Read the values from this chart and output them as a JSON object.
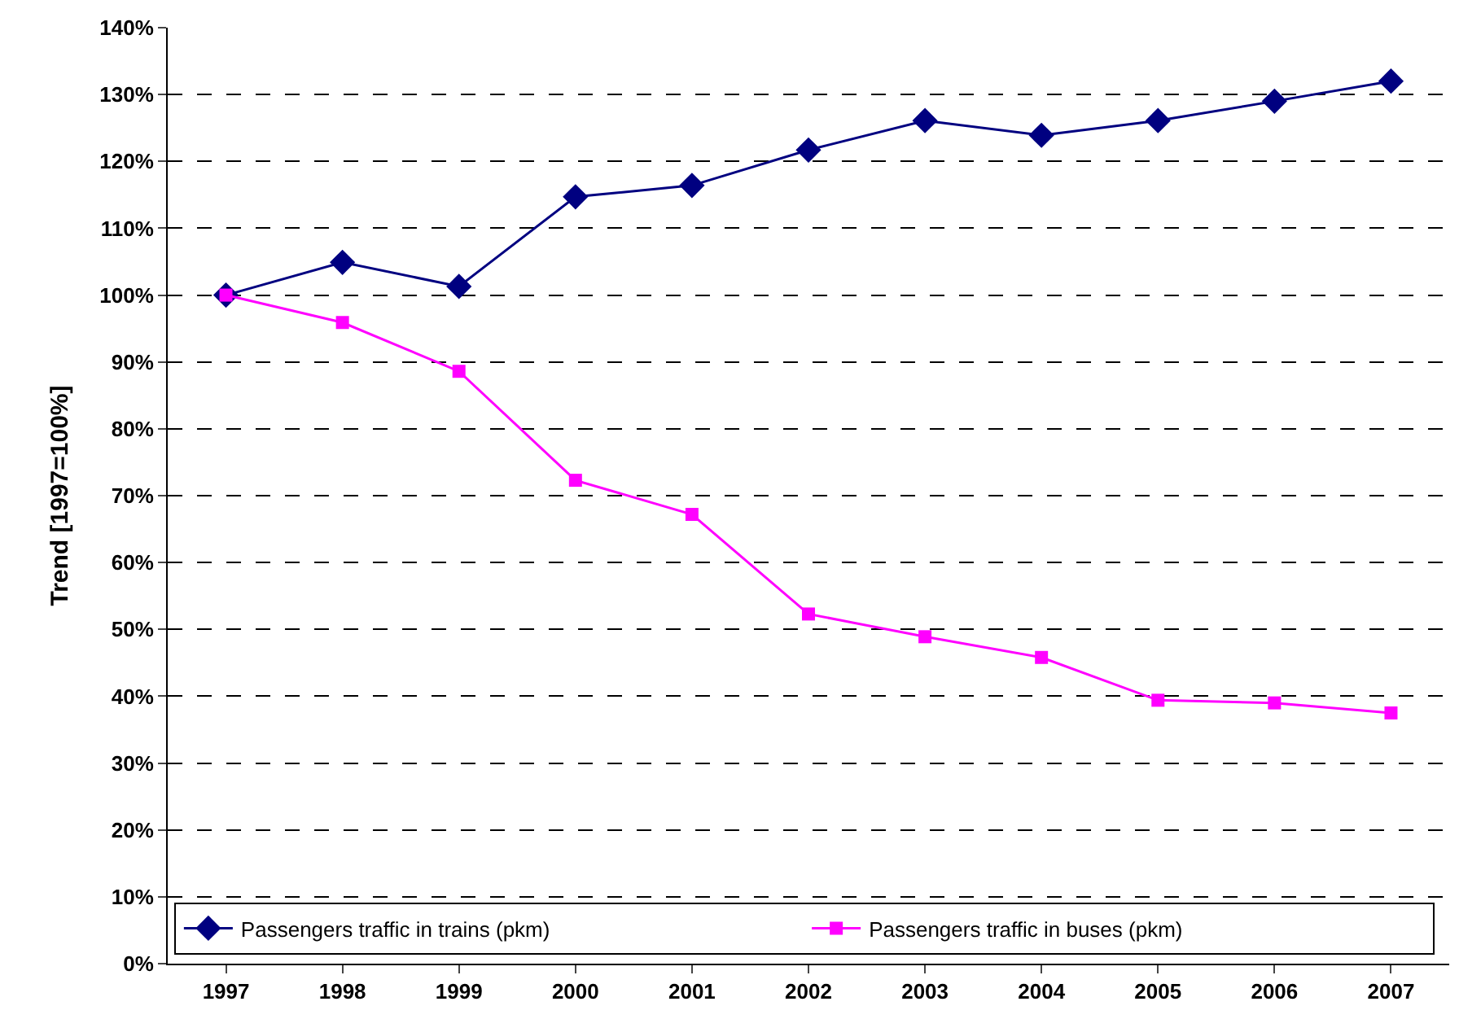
{
  "chart_data": {
    "type": "line",
    "ylabel": "Trend [1997=100%]",
    "categories": [
      "1997",
      "1998",
      "1999",
      "2000",
      "2001",
      "2002",
      "2003",
      "2004",
      "2005",
      "2006",
      "2007"
    ],
    "series": [
      {
        "name": "Passengers traffic in trains (pkm)",
        "color": "#000080",
        "marker": "diamond",
        "values": [
          100,
          104.9,
          101.3,
          114.7,
          116.4,
          121.7,
          126.1,
          123.9,
          126.1,
          129.0,
          132.0
        ]
      },
      {
        "name": "Passengers traffic in buses (pkm)",
        "color": "#ff00ff",
        "marker": "square",
        "values": [
          100,
          95.9,
          88.6,
          72.3,
          67.2,
          52.3,
          48.9,
          45.8,
          39.4,
          39.0,
          37.5
        ]
      }
    ],
    "ylim": [
      0,
      140
    ],
    "yticks": [
      {
        "value": 0,
        "label": "0%"
      },
      {
        "value": 10,
        "label": "10%"
      },
      {
        "value": 20,
        "label": "20%"
      },
      {
        "value": 30,
        "label": "30%"
      },
      {
        "value": 40,
        "label": "40%"
      },
      {
        "value": 50,
        "label": "50%"
      },
      {
        "value": 60,
        "label": "60%"
      },
      {
        "value": 70,
        "label": "70%"
      },
      {
        "value": 80,
        "label": "80%"
      },
      {
        "value": 90,
        "label": "90%"
      },
      {
        "value": 100,
        "label": "100%"
      },
      {
        "value": 110,
        "label": "110%"
      },
      {
        "value": 120,
        "label": "120%"
      },
      {
        "value": 130,
        "label": "130%"
      },
      {
        "value": 140,
        "label": "140%"
      }
    ],
    "grid": "y",
    "legend": "bottom",
    "line_style": "solid"
  }
}
